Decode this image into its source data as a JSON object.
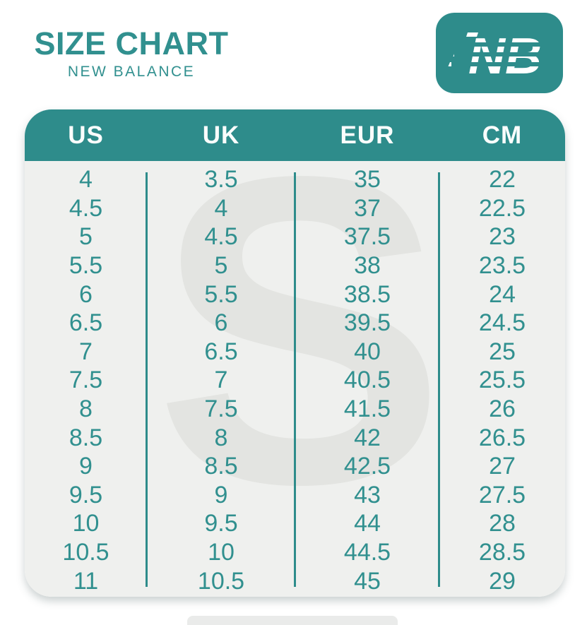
{
  "header": {
    "title": "SIZE CHART",
    "subtitle": "NEW BALANCE"
  },
  "logo": {
    "text": "NB",
    "brand": "New Balance"
  },
  "watermark": {
    "glyph": "S"
  },
  "colors": {
    "teal": "#2e8c8b",
    "teal_text": "#31908f",
    "table_bg": "#eff0ee",
    "watermark": "#e3e4e1",
    "header_text": "#fafdfc",
    "strip": "#eaebea",
    "page_bg": "#ffffff"
  },
  "chart_data": {
    "type": "table",
    "title": "SIZE CHART",
    "subtitle": "NEW BALANCE",
    "columns": [
      "US",
      "UK",
      "EUR",
      "CM"
    ],
    "rows": [
      [
        "4",
        "3.5",
        "35",
        "22"
      ],
      [
        "4.5",
        "4",
        "37",
        "22.5"
      ],
      [
        "5",
        "4.5",
        "37.5",
        "23"
      ],
      [
        "5.5",
        "5",
        "38",
        "23.5"
      ],
      [
        "6",
        "5.5",
        "38.5",
        "24"
      ],
      [
        "6.5",
        "6",
        "39.5",
        "24.5"
      ],
      [
        "7",
        "6.5",
        "40",
        "25"
      ],
      [
        "7.5",
        "7",
        "40.5",
        "25.5"
      ],
      [
        "8",
        "7.5",
        "41.5",
        "26"
      ],
      [
        "8.5",
        "8",
        "42",
        "26.5"
      ],
      [
        "9",
        "8.5",
        "42.5",
        "27"
      ],
      [
        "9.5",
        "9",
        "43",
        "27.5"
      ],
      [
        "10",
        "9.5",
        "44",
        "28"
      ],
      [
        "10.5",
        "10",
        "44.5",
        "28.5"
      ],
      [
        "11",
        "10.5",
        "45",
        "29"
      ]
    ],
    "layout": {
      "header_background": "#2e8c8b",
      "column_dividers": true,
      "row_gridlines": false
    }
  }
}
